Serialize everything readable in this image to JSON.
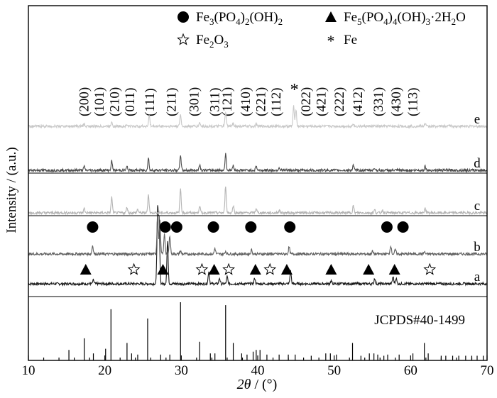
{
  "chart_data": {
    "type": "line",
    "xlabel_italic": "2θ",
    "xlabel_rest": " / (°)",
    "ylabel": "Intensity / (a.u.)",
    "xlim": [
      10,
      70
    ],
    "xticks": [
      10,
      20,
      30,
      40,
      50,
      60,
      70
    ],
    "legend": [
      {
        "symbol": "filled-circle",
        "label_parts": [
          [
            "Fe",
            false
          ],
          [
            "3",
            true
          ],
          [
            "(PO",
            false
          ],
          [
            "4",
            true
          ],
          [
            ")",
            false
          ],
          [
            "2",
            true
          ],
          [
            "(OH)",
            false
          ],
          [
            "2",
            true
          ]
        ]
      },
      {
        "symbol": "filled-triangle",
        "label_parts": [
          [
            "Fe",
            false
          ],
          [
            "5",
            true
          ],
          [
            "(PO",
            false
          ],
          [
            "4",
            true
          ],
          [
            ")",
            false
          ],
          [
            "4",
            true
          ],
          [
            "(OH)",
            false
          ],
          [
            "3",
            true
          ],
          [
            "·2H",
            false
          ],
          [
            "2",
            true
          ],
          [
            "O",
            false
          ]
        ]
      },
      {
        "symbol": "open-star",
        "label_parts": [
          [
            "Fe",
            false
          ],
          [
            "2",
            true
          ],
          [
            "O",
            false
          ],
          [
            "3",
            true
          ]
        ]
      },
      {
        "symbol": "asterisk",
        "label_parts": [
          [
            "Fe",
            false
          ]
        ]
      }
    ],
    "reference": {
      "label": "JCPDS#40-1499",
      "sticks": [
        [
          15.3,
          0.18
        ],
        [
          17.3,
          0.38
        ],
        [
          18.5,
          0.12
        ],
        [
          20.1,
          0.2
        ],
        [
          20.8,
          0.88
        ],
        [
          22.9,
          0.3
        ],
        [
          23.5,
          0.12
        ],
        [
          24.3,
          0.1
        ],
        [
          25.6,
          0.72
        ],
        [
          27.3,
          0.1
        ],
        [
          28.5,
          0.1
        ],
        [
          29.9,
          1.0
        ],
        [
          32.4,
          0.32
        ],
        [
          33.8,
          0.12
        ],
        [
          34.4,
          0.12
        ],
        [
          35.8,
          0.95
        ],
        [
          36.8,
          0.3
        ],
        [
          37.9,
          0.12
        ],
        [
          38.6,
          0.1
        ],
        [
          39.4,
          0.15
        ],
        [
          39.8,
          0.18
        ],
        [
          40.3,
          0.18
        ],
        [
          41.2,
          0.1
        ],
        [
          42.8,
          0.1
        ],
        [
          44.0,
          0.1
        ],
        [
          44.9,
          0.1
        ],
        [
          47.0,
          0.08
        ],
        [
          48.9,
          0.12
        ],
        [
          49.5,
          0.12
        ],
        [
          50.3,
          0.1
        ],
        [
          52.4,
          0.3
        ],
        [
          53.5,
          0.08
        ],
        [
          54.6,
          0.12
        ],
        [
          55.2,
          0.12
        ],
        [
          55.7,
          0.1
        ],
        [
          56.5,
          0.08
        ],
        [
          57.0,
          0.1
        ],
        [
          58.5,
          0.1
        ],
        [
          60.3,
          0.12
        ],
        [
          61.8,
          0.3
        ],
        [
          62.3,
          0.12
        ],
        [
          64.0,
          0.08
        ],
        [
          64.6,
          0.08
        ],
        [
          65.5,
          0.08
        ],
        [
          66.3,
          0.08
        ],
        [
          67.2,
          0.08
        ],
        [
          68.0,
          0.08
        ],
        [
          68.7,
          0.08
        ],
        [
          69.5,
          0.08
        ]
      ]
    },
    "series": [
      {
        "label": "a",
        "color": "#1a1a1a",
        "baseline": 0.0,
        "peaks": [
          [
            18.5,
            0.25
          ],
          [
            26.9,
            5.2
          ],
          [
            27.1,
            4.4
          ],
          [
            28.2,
            3.0
          ],
          [
            33.6,
            0.9
          ],
          [
            35.0,
            0.4
          ],
          [
            36.0,
            0.5
          ],
          [
            39.6,
            0.4
          ],
          [
            44.3,
            0.9
          ],
          [
            49.6,
            0.2
          ],
          [
            55.3,
            0.4
          ],
          [
            57.7,
            0.5
          ],
          [
            58.1,
            0.4
          ]
        ],
        "markers": [
          [
            "filled-triangle",
            17.5
          ],
          [
            "open-star",
            23.8
          ],
          [
            "filled-triangle",
            27.6
          ],
          [
            "open-star",
            32.7
          ],
          [
            "filled-triangle",
            34.3
          ],
          [
            "open-star",
            36.2
          ],
          [
            "filled-triangle",
            39.7
          ],
          [
            "open-star",
            41.6
          ],
          [
            "filled-triangle",
            43.8
          ],
          [
            "filled-triangle",
            49.6
          ],
          [
            "filled-triangle",
            54.5
          ],
          [
            "filled-triangle",
            57.9
          ],
          [
            "open-star",
            62.5
          ]
        ]
      },
      {
        "label": "b",
        "color": "#606060",
        "baseline": 1.0,
        "peaks": [
          [
            18.4,
            0.6
          ],
          [
            26.9,
            2.7
          ],
          [
            27.2,
            2.4
          ],
          [
            27.8,
            1.4
          ],
          [
            28.5,
            1.3
          ],
          [
            29.9,
            0.2
          ],
          [
            34.4,
            0.4
          ],
          [
            35.8,
            0.2
          ],
          [
            39.2,
            0.3
          ],
          [
            44.1,
            0.5
          ],
          [
            55.0,
            0.2
          ],
          [
            57.4,
            0.6
          ],
          [
            58.0,
            0.3
          ],
          [
            61.8,
            0.15
          ]
        ],
        "markers": [
          [
            "filled-circle",
            18.4
          ],
          [
            "filled-circle",
            27.9
          ],
          [
            "filled-circle",
            29.4
          ],
          [
            "filled-circle",
            34.2
          ],
          [
            "filled-circle",
            39.1
          ],
          [
            "filled-circle",
            44.2
          ],
          [
            "filled-circle",
            56.9
          ],
          [
            "filled-circle",
            59.0
          ]
        ]
      },
      {
        "label": "c",
        "color": "#b4b4b4",
        "baseline": 2.0,
        "peaks": [
          [
            17.3,
            0.3
          ],
          [
            20.9,
            1.1
          ],
          [
            22.9,
            0.4
          ],
          [
            24.3,
            0.25
          ],
          [
            25.7,
            1.3
          ],
          [
            29.9,
            1.7
          ],
          [
            32.4,
            0.5
          ],
          [
            35.8,
            1.9
          ],
          [
            36.8,
            0.5
          ],
          [
            39.8,
            0.3
          ],
          [
            42.8,
            0.2
          ],
          [
            52.5,
            0.5
          ],
          [
            55.3,
            0.2
          ],
          [
            56.3,
            0.2
          ],
          [
            61.9,
            0.35
          ]
        ],
        "markers": []
      },
      {
        "label": "d",
        "color": "#4a4a4a",
        "baseline": 3.0,
        "peaks": [
          [
            17.3,
            0.25
          ],
          [
            20.9,
            0.65
          ],
          [
            22.9,
            0.25
          ],
          [
            25.7,
            0.85
          ],
          [
            29.9,
            1.1
          ],
          [
            32.4,
            0.4
          ],
          [
            35.8,
            1.15
          ],
          [
            36.8,
            0.35
          ],
          [
            39.8,
            0.3
          ],
          [
            42.8,
            0.2
          ],
          [
            52.5,
            0.35
          ],
          [
            55.3,
            0.15
          ],
          [
            61.9,
            0.3
          ]
        ],
        "markers": []
      },
      {
        "label": "e",
        "color": "#c8c8c8",
        "baseline": 4.0,
        "peaks": [
          [
            17.3,
            0.15
          ],
          [
            20.9,
            0.35
          ],
          [
            22.9,
            0.1
          ],
          [
            25.8,
            0.75
          ],
          [
            29.9,
            0.8
          ],
          [
            32.4,
            0.25
          ],
          [
            35.8,
            1.0
          ],
          [
            36.8,
            0.25
          ],
          [
            39.8,
            0.15
          ],
          [
            44.7,
            1.4
          ],
          [
            45.0,
            1.2
          ],
          [
            52.5,
            0.2
          ],
          [
            61.9,
            0.2
          ],
          [
            65.1,
            0.12
          ]
        ],
        "markers": []
      }
    ],
    "hkl_labels": [
      {
        "text": "(200)",
        "x": 17.3
      },
      {
        "text": "(101)",
        "x": 19.3
      },
      {
        "text": "(210)",
        "x": 21.3
      },
      {
        "text": "(011)",
        "x": 23.3
      },
      {
        "text": "(111)",
        "x": 25.9
      },
      {
        "text": "(211)",
        "x": 28.7
      },
      {
        "text": "(301)",
        "x": 31.7
      },
      {
        "text": "(311)",
        "x": 34.4
      },
      {
        "text": "(121)",
        "x": 36.0
      },
      {
        "text": "(410)",
        "x": 38.4
      },
      {
        "text": "(221)",
        "x": 40.4
      },
      {
        "text": "(112)",
        "x": 42.4
      },
      {
        "text": "*",
        "x": 44.8,
        "star": true
      },
      {
        "text": "(022)",
        "x": 46.3
      },
      {
        "text": "(421)",
        "x": 48.3
      },
      {
        "text": "(222)",
        "x": 50.7
      },
      {
        "text": "(412)",
        "x": 53.1
      },
      {
        "text": "(331)",
        "x": 55.8
      },
      {
        "text": "(430)",
        "x": 58.1
      },
      {
        "text": "(113)",
        "x": 60.3
      }
    ]
  }
}
